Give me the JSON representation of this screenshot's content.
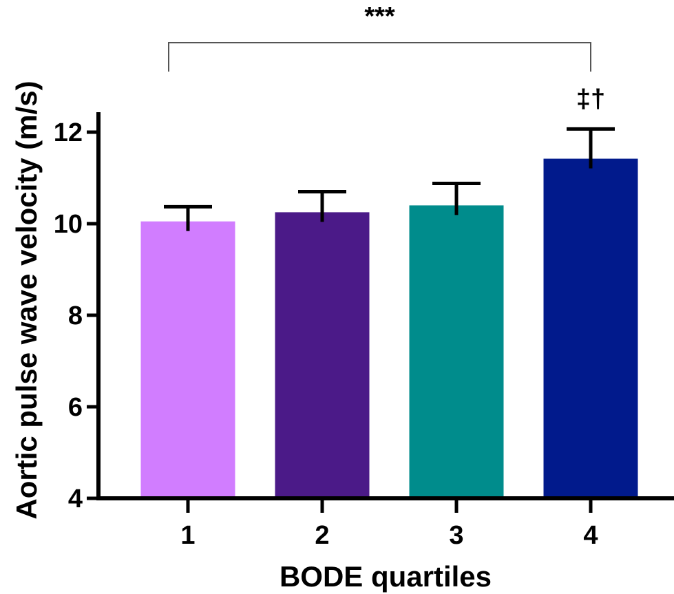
{
  "chart_data": {
    "type": "bar",
    "xlabel": "BODE quartiles",
    "ylabel": "Aortic pulse wave velocity (m/s)",
    "categories": [
      "1",
      "2",
      "3",
      "4"
    ],
    "values": [
      10.05,
      10.25,
      10.4,
      11.42
    ],
    "errors": [
      0.32,
      0.45,
      0.48,
      0.65
    ],
    "colors": [
      "#d17dff",
      "#4b1a88",
      "#008c8c",
      "#011a8c"
    ],
    "ylim": [
      4,
      12.5
    ],
    "yticks": [
      "4",
      "6",
      "8",
      "10",
      "12"
    ],
    "grid": false,
    "annotations": {
      "significance_bracket": {
        "from": "1",
        "to": "4",
        "label": "***"
      },
      "bar_marker": {
        "category": "4",
        "label": "‡†"
      }
    }
  }
}
